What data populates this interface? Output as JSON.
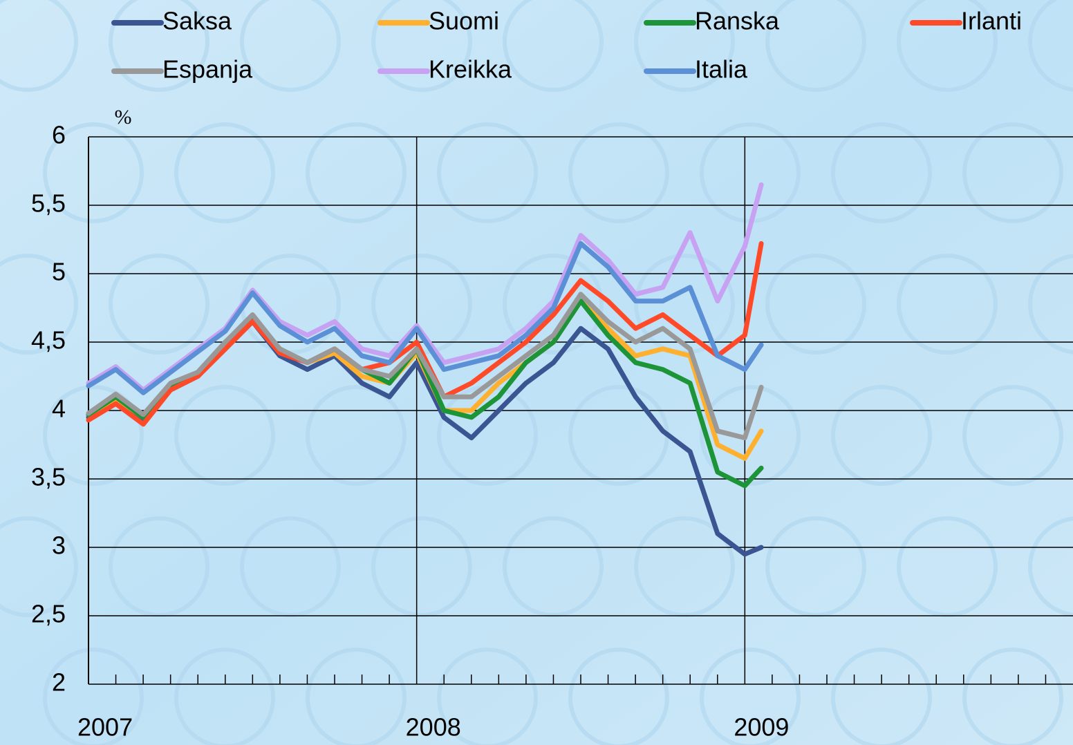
{
  "chart_data": {
    "type": "line",
    "y_unit": "%",
    "x": [
      2007.0,
      2007.083,
      2007.167,
      2007.25,
      2007.333,
      2007.417,
      2007.5,
      2007.583,
      2007.667,
      2007.75,
      2007.833,
      2007.917,
      2008.0,
      2008.083,
      2008.167,
      2008.25,
      2008.333,
      2008.417,
      2008.5,
      2008.583,
      2008.667,
      2008.75,
      2008.833,
      2008.917,
      2009.0,
      2009.05
    ],
    "series": [
      {
        "name": "Saksa",
        "color": "#3a5592",
        "values": [
          3.95,
          4.07,
          3.92,
          4.15,
          4.25,
          4.45,
          4.65,
          4.4,
          4.3,
          4.4,
          4.2,
          4.1,
          4.35,
          3.95,
          3.8,
          4.0,
          4.2,
          4.35,
          4.6,
          4.45,
          4.1,
          3.85,
          3.7,
          3.1,
          2.95,
          3.0
        ]
      },
      {
        "name": "Suomi",
        "color": "#ffb02e",
        "values": [
          3.97,
          4.09,
          3.95,
          4.17,
          4.27,
          4.48,
          4.68,
          4.45,
          4.35,
          4.42,
          4.25,
          4.2,
          4.42,
          4.0,
          4.0,
          4.2,
          4.35,
          4.5,
          4.8,
          4.6,
          4.4,
          4.45,
          4.4,
          3.75,
          3.65,
          3.85
        ]
      },
      {
        "name": "Ranska",
        "color": "#1e9438",
        "values": [
          3.97,
          4.1,
          3.95,
          4.18,
          4.28,
          4.5,
          4.68,
          4.45,
          4.35,
          4.45,
          4.3,
          4.2,
          4.45,
          4.0,
          3.95,
          4.1,
          4.35,
          4.5,
          4.8,
          4.55,
          4.35,
          4.3,
          4.2,
          3.55,
          3.45,
          3.58
        ]
      },
      {
        "name": "Irlanti",
        "color": "#ff4a2a",
        "values": [
          3.93,
          4.05,
          3.9,
          4.15,
          4.25,
          4.45,
          4.65,
          4.42,
          4.35,
          4.45,
          4.3,
          4.35,
          4.5,
          4.1,
          4.2,
          4.35,
          4.5,
          4.7,
          4.95,
          4.8,
          4.6,
          4.7,
          4.55,
          4.4,
          4.55,
          5.22
        ]
      },
      {
        "name": "Espanja",
        "color": "#999999",
        "values": [
          3.98,
          4.12,
          3.97,
          4.2,
          4.28,
          4.5,
          4.7,
          4.45,
          4.35,
          4.45,
          4.3,
          4.25,
          4.45,
          4.1,
          4.1,
          4.25,
          4.4,
          4.55,
          4.85,
          4.65,
          4.5,
          4.6,
          4.45,
          3.85,
          3.8,
          4.17
        ]
      },
      {
        "name": "Kreikka",
        "color": "#c7a2f2",
        "values": [
          4.2,
          4.32,
          4.15,
          4.3,
          4.45,
          4.6,
          4.88,
          4.65,
          4.55,
          4.65,
          4.45,
          4.4,
          4.62,
          4.35,
          4.4,
          4.45,
          4.6,
          4.8,
          5.28,
          5.1,
          4.85,
          4.9,
          5.3,
          4.8,
          5.2,
          5.65
        ]
      },
      {
        "name": "Italia",
        "color": "#5b8fd6",
        "values": [
          4.18,
          4.3,
          4.13,
          4.28,
          4.43,
          4.58,
          4.86,
          4.62,
          4.5,
          4.6,
          4.4,
          4.35,
          4.6,
          4.3,
          4.35,
          4.4,
          4.55,
          4.75,
          5.22,
          5.05,
          4.8,
          4.8,
          4.9,
          4.4,
          4.3,
          4.48
        ]
      }
    ],
    "xlim": [
      2007,
      2010
    ],
    "xticks": [
      2007,
      2008,
      2009
    ],
    "ylim": [
      2,
      6
    ],
    "yticks": [
      2,
      {
        "value": 2.5,
        "label": "2,5"
      },
      3,
      {
        "value": 3.5,
        "label": "3,5"
      },
      4,
      {
        "value": 4.5,
        "label": "4,5"
      },
      5,
      {
        "value": 5.5,
        "label": "5,5"
      },
      6
    ],
    "grid": true
  }
}
